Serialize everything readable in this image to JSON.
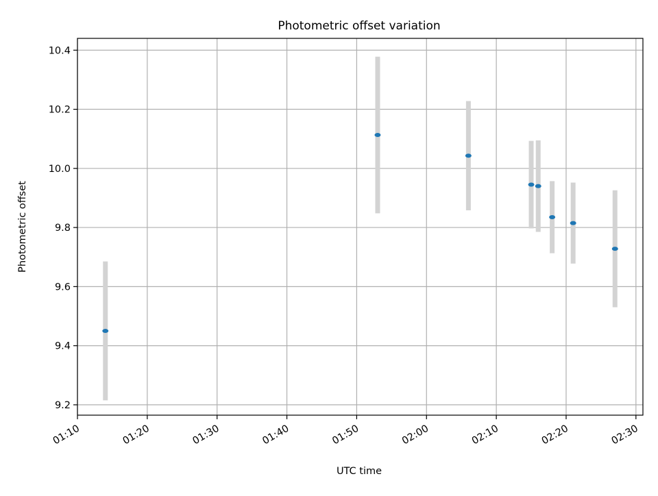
{
  "chart_data": {
    "type": "scatter",
    "title": "Photometric offset variation",
    "xlabel": "UTC time",
    "ylabel": "Photometric offset",
    "x_ticks": [
      "01:10",
      "01:20",
      "01:30",
      "01:40",
      "01:50",
      "02:00",
      "02:10",
      "02:20",
      "02:30"
    ],
    "y_ticks": [
      "9.2",
      "9.4",
      "9.6",
      "9.8",
      "10.0",
      "10.2",
      "10.4"
    ],
    "xlim": [
      "01:10",
      "02:31"
    ],
    "ylim": [
      9.165,
      10.44
    ],
    "grid": true,
    "points": [
      {
        "x": "01:14",
        "y": 9.45,
        "err": 0.235
      },
      {
        "x": "01:53",
        "y": 10.113,
        "err": 0.265
      },
      {
        "x": "02:06",
        "y": 10.043,
        "err": 0.185
      },
      {
        "x": "02:15",
        "y": 9.945,
        "err": 0.148
      },
      {
        "x": "02:16",
        "y": 9.94,
        "err": 0.155
      },
      {
        "x": "02:18",
        "y": 9.835,
        "err": 0.122
      },
      {
        "x": "02:21",
        "y": 9.815,
        "err": 0.137
      },
      {
        "x": "02:27",
        "y": 9.728,
        "err": 0.198
      }
    ],
    "colors": {
      "marker": "#1f77b4",
      "errorbar": "#d3d3d3",
      "grid": "#b0b0b0",
      "axis": "#000000"
    }
  }
}
